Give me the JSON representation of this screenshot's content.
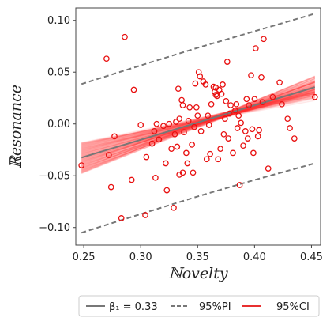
{
  "chart_data": {
    "type": "scatter",
    "xlabel": "ℕovelty",
    "ylabel": "ℝesonance",
    "xlim": [
      0.243,
      0.458
    ],
    "ylim": [
      -0.117,
      0.112
    ],
    "xticks": [
      0.25,
      0.3,
      0.35,
      0.4,
      0.45
    ],
    "xtick_labels": [
      "0.25",
      "0.30",
      "0.35",
      "0.40",
      "0.45"
    ],
    "yticks": [
      -0.1,
      -0.05,
      0.0,
      0.05,
      0.1
    ],
    "ytick_labels": [
      "−0.10",
      "−0.05",
      "0.00",
      "0.05",
      "0.10"
    ],
    "grid": false,
    "legend_position": "bottom",
    "legend": [
      {
        "label": "β₁ = 0.33",
        "style": "solid",
        "color": "#777777"
      },
      {
        "label": "95%PI",
        "style": "dashed",
        "color": "#777777"
      },
      {
        "label": "95%CI",
        "style": "solid",
        "color": "#e83030"
      }
    ],
    "fit_line": {
      "x": [
        0.248,
        0.453
      ],
      "y": [
        -0.0325,
        0.0355
      ]
    },
    "pi_upper": {
      "x": [
        0.248,
        0.3,
        0.35,
        0.4,
        0.453
      ],
      "y": [
        0.0385,
        0.0565,
        0.0735,
        0.0895,
        0.1065
      ]
    },
    "pi_lower": {
      "x": [
        0.248,
        0.3,
        0.35,
        0.4,
        0.453
      ],
      "y": [
        -0.105,
        -0.087,
        -0.07,
        -0.054,
        -0.038
      ]
    },
    "ci_upper": {
      "x": [
        0.248,
        0.3,
        0.35,
        0.37,
        0.4,
        0.453
      ],
      "y": [
        -0.018,
        -0.004,
        0.008,
        0.012,
        0.023,
        0.048
      ]
    },
    "ci_lower": {
      "x": [
        0.248,
        0.3,
        0.35,
        0.37,
        0.4,
        0.453
      ],
      "y": [
        -0.048,
        -0.019,
        -0.003,
        0.002,
        0.006,
        0.022
      ]
    },
    "points": [
      [
        0.248,
        -0.04
      ],
      [
        0.27,
        0.063
      ],
      [
        0.272,
        -0.03
      ],
      [
        0.274,
        -0.061
      ],
      [
        0.277,
        -0.012
      ],
      [
        0.283,
        -0.091
      ],
      [
        0.286,
        0.084
      ],
      [
        0.292,
        -0.054
      ],
      [
        0.294,
        0.033
      ],
      [
        0.3,
        -0.001
      ],
      [
        0.304,
        -0.088
      ],
      [
        0.305,
        -0.032
      ],
      [
        0.31,
        -0.019
      ],
      [
        0.312,
        -0.007
      ],
      [
        0.313,
        -0.052
      ],
      [
        0.314,
        0.0
      ],
      [
        0.316,
        -0.015
      ],
      [
        0.32,
        -0.002
      ],
      [
        0.322,
        -0.038
      ],
      [
        0.323,
        -0.064
      ],
      [
        0.325,
        0.0
      ],
      [
        0.327,
        -0.024
      ],
      [
        0.329,
        -0.081
      ],
      [
        0.33,
        -0.01
      ],
      [
        0.331,
        0.002
      ],
      [
        0.332,
        -0.022
      ],
      [
        0.333,
        0.034
      ],
      [
        0.334,
        0.005
      ],
      [
        0.334,
        -0.049
      ],
      [
        0.336,
        0.023
      ],
      [
        0.337,
        0.018
      ],
      [
        0.337,
        -0.047
      ],
      [
        0.338,
        -0.008
      ],
      [
        0.34,
        -0.028
      ],
      [
        0.341,
        -0.038
      ],
      [
        0.342,
        0.003
      ],
      [
        0.343,
        0.016
      ],
      [
        0.345,
        -0.02
      ],
      [
        0.346,
        -0.047
      ],
      [
        0.347,
        -0.003
      ],
      [
        0.348,
        0.039
      ],
      [
        0.349,
        0.016
      ],
      [
        0.35,
        0.008
      ],
      [
        0.351,
        0.05
      ],
      [
        0.352,
        0.046
      ],
      [
        0.353,
        -0.007
      ],
      [
        0.355,
        0.041
      ],
      [
        0.357,
        0.038
      ],
      [
        0.358,
        -0.034
      ],
      [
        0.359,
        0.008
      ],
      [
        0.36,
        -0.001
      ],
      [
        0.361,
        -0.029
      ],
      [
        0.362,
        0.019
      ],
      [
        0.364,
        0.036
      ],
      [
        0.365,
        0.031
      ],
      [
        0.366,
        0.028
      ],
      [
        0.366,
        0.035
      ],
      [
        0.367,
        0.027
      ],
      [
        0.368,
        -0.034
      ],
      [
        0.369,
        0.033
      ],
      [
        0.37,
        -0.024
      ],
      [
        0.371,
        0.029
      ],
      [
        0.372,
        0.038
      ],
      [
        0.373,
        -0.01
      ],
      [
        0.374,
        0.005
      ],
      [
        0.375,
        0.022
      ],
      [
        0.376,
        0.06
      ],
      [
        0.377,
        -0.014
      ],
      [
        0.378,
        0.01
      ],
      [
        0.379,
        0.018
      ],
      [
        0.381,
        -0.028
      ],
      [
        0.383,
        0.013
      ],
      [
        0.384,
        0.019
      ],
      [
        0.385,
        -0.004
      ],
      [
        0.386,
        0.008
      ],
      [
        0.387,
        -0.059
      ],
      [
        0.388,
        0.001
      ],
      [
        0.39,
        -0.021
      ],
      [
        0.392,
        -0.007
      ],
      [
        0.393,
        0.024
      ],
      [
        0.394,
        -0.014
      ],
      [
        0.395,
        0.018
      ],
      [
        0.397,
        0.047
      ],
      [
        0.398,
        -0.005
      ],
      [
        0.399,
        -0.028
      ],
      [
        0.4,
        0.024
      ],
      [
        0.401,
        0.073
      ],
      [
        0.403,
        -0.012
      ],
      [
        0.404,
        -0.006
      ],
      [
        0.406,
        0.045
      ],
      [
        0.407,
        0.021
      ],
      [
        0.408,
        0.082
      ],
      [
        0.412,
        -0.043
      ],
      [
        0.416,
        0.026
      ],
      [
        0.422,
        0.04
      ],
      [
        0.424,
        0.019
      ],
      [
        0.429,
        0.005
      ],
      [
        0.431,
        -0.004
      ],
      [
        0.435,
        -0.014
      ],
      [
        0.453,
        0.026
      ]
    ],
    "point_color": "#e81010"
  }
}
